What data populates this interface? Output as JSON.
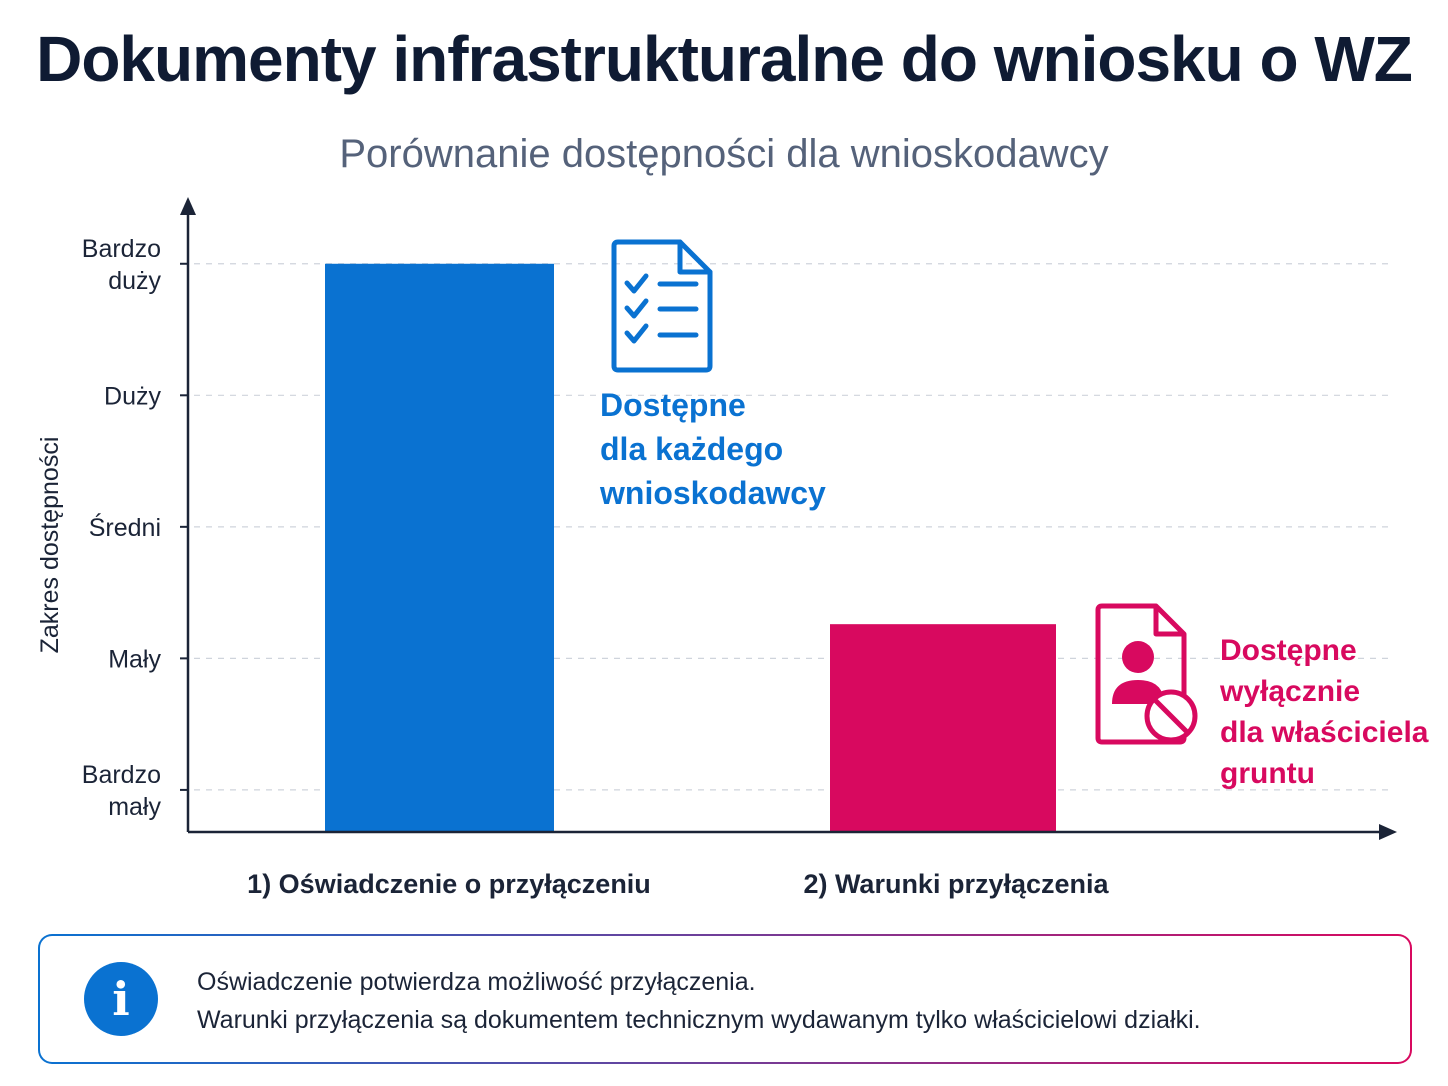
{
  "title": "Dokumenty infrastrukturalne do wniosku o WZ",
  "subtitle": "Porównanie dostępności dla wnioskodawcy",
  "chart_data": {
    "type": "bar",
    "ylabel": "Zakres dostępności",
    "xlabel": "",
    "y_levels": [
      {
        "value": 1,
        "label": [
          "Bardzo",
          "mały"
        ]
      },
      {
        "value": 2,
        "label": [
          "Mały"
        ]
      },
      {
        "value": 3,
        "label": [
          "Średni"
        ]
      },
      {
        "value": 4,
        "label": [
          "Duży"
        ]
      },
      {
        "value": 5,
        "label": [
          "Bardzo",
          "duży"
        ]
      }
    ],
    "ylim": [
      0.68,
      5.5
    ],
    "grid": true,
    "categories": [
      "1) Oświadczenie o przyłączeniu",
      "2) Warunki przyłączenia"
    ],
    "values": [
      5,
      2.26
    ],
    "colors": [
      "#0a72d1",
      "#d8095f"
    ],
    "annotations": [
      {
        "icon": "document-checklist-icon",
        "lines": [
          "Dostępne",
          "dla każdego",
          "wnioskodawcy"
        ],
        "color": "#0a72d1"
      },
      {
        "icon": "document-user-forbidden-icon",
        "lines": [
          "Dostępne",
          "wyłącznie",
          "dla właściciela",
          "gruntu"
        ],
        "color": "#d8095f"
      }
    ]
  },
  "info": {
    "icon": "info-icon",
    "line1": "Oświadczenie potwierdza możliwość przyłączenia.",
    "line2": "Warunki przyłączenia są dokumentem technicznym wydawanym tylko właścicielowi działki."
  }
}
